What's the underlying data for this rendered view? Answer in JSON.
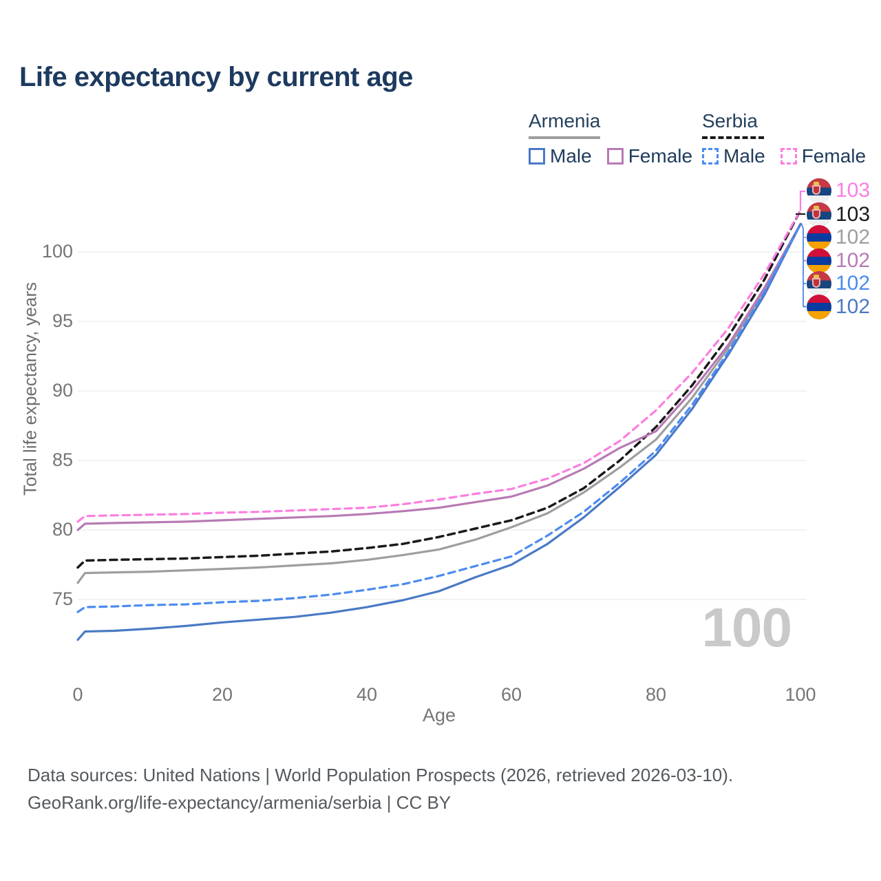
{
  "title": "Life expectancy by current age",
  "legend": {
    "groups": [
      {
        "name": "Armenia",
        "underline": {
          "color": "#9e9e9e",
          "dash": "solid"
        },
        "items": [
          {
            "label": "Male",
            "series": "armenia_male"
          },
          {
            "label": "Female",
            "series": "armenia_female"
          }
        ]
      },
      {
        "name": "Serbia",
        "underline": {
          "color": "#1a1a1a",
          "dash": "dashed"
        },
        "items": [
          {
            "label": "Male",
            "series": "serbia_male"
          },
          {
            "label": "Female",
            "series": "serbia_female"
          }
        ]
      }
    ]
  },
  "chart_data": {
    "type": "line",
    "title": "Life expectancy by current age",
    "xlabel": "Age",
    "ylabel": "Total life expectancy, years",
    "x_ticks": [
      0,
      20,
      40,
      60,
      80,
      100
    ],
    "y_ticks": [
      75,
      80,
      85,
      90,
      95,
      100
    ],
    "xlim": [
      0,
      100
    ],
    "ylim": [
      72,
      104
    ],
    "grid": "horizontal-only",
    "legend_position": "top-right",
    "series": [
      {
        "id": "armenia_total",
        "name": "Armenia (both sexes)",
        "color": "#9e9e9e",
        "dash": "solid",
        "points": [
          [
            0,
            76.2
          ],
          [
            1,
            76.9
          ],
          [
            5,
            76.95
          ],
          [
            10,
            77.0
          ],
          [
            15,
            77.1
          ],
          [
            20,
            77.2
          ],
          [
            25,
            77.3
          ],
          [
            30,
            77.45
          ],
          [
            35,
            77.6
          ],
          [
            40,
            77.85
          ],
          [
            45,
            78.2
          ],
          [
            50,
            78.6
          ],
          [
            55,
            79.3
          ],
          [
            60,
            80.2
          ],
          [
            65,
            81.2
          ],
          [
            70,
            82.7
          ],
          [
            75,
            84.5
          ],
          [
            80,
            86.5
          ],
          [
            85,
            89.5
          ],
          [
            90,
            93.1
          ],
          [
            95,
            97.2
          ],
          [
            100,
            102
          ]
        ]
      },
      {
        "id": "serbia_total",
        "name": "Serbia (both sexes)",
        "color": "#1a1a1a",
        "dash": "dashed",
        "points": [
          [
            0,
            77.3
          ],
          [
            1,
            77.8
          ],
          [
            5,
            77.85
          ],
          [
            10,
            77.9
          ],
          [
            15,
            77.95
          ],
          [
            20,
            78.05
          ],
          [
            25,
            78.15
          ],
          [
            30,
            78.3
          ],
          [
            35,
            78.45
          ],
          [
            40,
            78.7
          ],
          [
            45,
            79.0
          ],
          [
            50,
            79.5
          ],
          [
            55,
            80.1
          ],
          [
            60,
            80.7
          ],
          [
            65,
            81.6
          ],
          [
            70,
            83.0
          ],
          [
            75,
            85.0
          ],
          [
            80,
            87.4
          ],
          [
            85,
            90.4
          ],
          [
            90,
            93.9
          ],
          [
            95,
            98.0
          ],
          [
            100,
            103
          ]
        ]
      },
      {
        "id": "armenia_female",
        "name": "Armenia Female",
        "color": "#b77ab4",
        "dash": "solid",
        "points": [
          [
            0,
            80.0
          ],
          [
            1,
            80.45
          ],
          [
            5,
            80.5
          ],
          [
            10,
            80.55
          ],
          [
            15,
            80.6
          ],
          [
            20,
            80.7
          ],
          [
            25,
            80.8
          ],
          [
            30,
            80.9
          ],
          [
            35,
            81.0
          ],
          [
            40,
            81.15
          ],
          [
            45,
            81.35
          ],
          [
            50,
            81.6
          ],
          [
            55,
            82.0
          ],
          [
            60,
            82.4
          ],
          [
            65,
            83.2
          ],
          [
            70,
            84.4
          ],
          [
            75,
            85.9
          ],
          [
            80,
            87.1
          ],
          [
            85,
            90.0
          ],
          [
            90,
            93.3
          ],
          [
            95,
            97.4
          ],
          [
            100,
            102
          ]
        ]
      },
      {
        "id": "serbia_female",
        "name": "Serbia Female",
        "color": "#fb7ee0",
        "dash": "dashed",
        "points": [
          [
            0,
            80.6
          ],
          [
            1,
            81.0
          ],
          [
            5,
            81.05
          ],
          [
            10,
            81.1
          ],
          [
            15,
            81.15
          ],
          [
            20,
            81.25
          ],
          [
            25,
            81.3
          ],
          [
            30,
            81.4
          ],
          [
            35,
            81.5
          ],
          [
            40,
            81.6
          ],
          [
            45,
            81.85
          ],
          [
            50,
            82.2
          ],
          [
            55,
            82.6
          ],
          [
            60,
            82.95
          ],
          [
            65,
            83.7
          ],
          [
            70,
            84.8
          ],
          [
            75,
            86.4
          ],
          [
            80,
            88.6
          ],
          [
            85,
            91.3
          ],
          [
            90,
            94.5
          ],
          [
            95,
            98.4
          ],
          [
            100,
            103
          ]
        ]
      },
      {
        "id": "armenia_male",
        "name": "Armenia Male",
        "color": "#4a79c5",
        "dash": "solid",
        "points": [
          [
            0,
            72.1
          ],
          [
            1,
            72.7
          ],
          [
            5,
            72.75
          ],
          [
            10,
            72.9
          ],
          [
            15,
            73.1
          ],
          [
            20,
            73.35
          ],
          [
            25,
            73.55
          ],
          [
            30,
            73.75
          ],
          [
            35,
            74.05
          ],
          [
            40,
            74.45
          ],
          [
            45,
            74.95
          ],
          [
            50,
            75.6
          ],
          [
            55,
            76.6
          ],
          [
            60,
            77.5
          ],
          [
            65,
            79.0
          ],
          [
            70,
            80.9
          ],
          [
            75,
            83.1
          ],
          [
            80,
            85.4
          ],
          [
            85,
            88.7
          ],
          [
            90,
            92.6
          ],
          [
            95,
            96.9
          ],
          [
            100,
            102
          ]
        ]
      },
      {
        "id": "serbia_male",
        "name": "Serbia Male",
        "color": "#4b8bf0",
        "dash": "dashed",
        "points": [
          [
            0,
            74.1
          ],
          [
            1,
            74.45
          ],
          [
            5,
            74.5
          ],
          [
            10,
            74.6
          ],
          [
            15,
            74.65
          ],
          [
            20,
            74.8
          ],
          [
            25,
            74.9
          ],
          [
            30,
            75.1
          ],
          [
            35,
            75.35
          ],
          [
            40,
            75.7
          ],
          [
            45,
            76.1
          ],
          [
            50,
            76.7
          ],
          [
            55,
            77.4
          ],
          [
            60,
            78.1
          ],
          [
            65,
            79.6
          ],
          [
            70,
            81.3
          ],
          [
            75,
            83.4
          ],
          [
            80,
            85.7
          ],
          [
            85,
            89.0
          ],
          [
            90,
            92.8
          ],
          [
            95,
            97.1
          ],
          [
            100,
            102
          ]
        ]
      }
    ]
  },
  "end_labels": [
    {
      "value": "103",
      "flag": "serbia",
      "series": "serbia_female",
      "color": "#fb7ee0"
    },
    {
      "value": "103",
      "flag": "serbia",
      "series": "serbia_total",
      "color": "#1a1a1a"
    },
    {
      "value": "102",
      "flag": "armenia",
      "series": "armenia_total",
      "color": "#9e9e9e"
    },
    {
      "value": "102",
      "flag": "armenia",
      "series": "armenia_female",
      "color": "#b77ab4"
    },
    {
      "value": "102",
      "flag": "serbia",
      "series": "serbia_male",
      "color": "#4b8bf0"
    },
    {
      "value": "102",
      "flag": "armenia",
      "series": "armenia_male",
      "color": "#4a79c5"
    }
  ],
  "watermark": "100",
  "footer": {
    "line1": "Data sources: United Nations | World Population Prospects (2026, retrieved 2026-03-10).",
    "line2": "GeoRank.org/life-expectancy/armenia/serbia | CC BY"
  }
}
